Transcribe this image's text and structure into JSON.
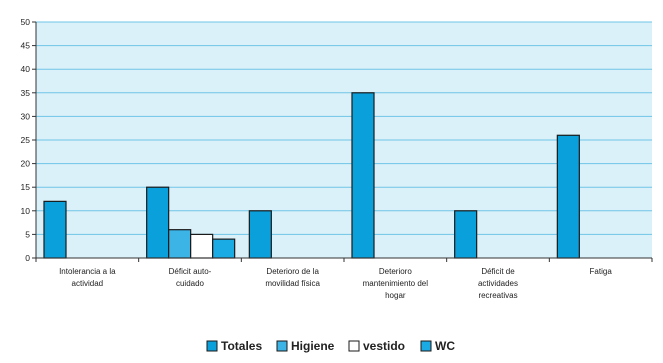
{
  "chart_data": {
    "type": "bar",
    "title": "",
    "xlabel": "",
    "ylabel": "",
    "ylim": [
      0,
      50
    ],
    "yticks": [
      0,
      5,
      10,
      15,
      20,
      25,
      30,
      35,
      40,
      45,
      50
    ],
    "grid": true,
    "legend_position": "bottom",
    "categories": [
      [
        "Intolerancia a la",
        "actividad"
      ],
      [
        "Déficit auto-",
        "cuidado"
      ],
      [
        "Deterioro de la",
        "movilidad física"
      ],
      [
        "Deterioro",
        "mantenimiento del",
        "hogar"
      ],
      [
        "Déficit de",
        "actividades",
        "recreativas"
      ],
      [
        "Fatiga"
      ]
    ],
    "series": [
      {
        "name": "Totales",
        "color": "#0aa0dc",
        "values": [
          12,
          15,
          10,
          35,
          10,
          26
        ]
      },
      {
        "name": "Higiene",
        "color": "#3cb4e6",
        "values": [
          null,
          6,
          null,
          null,
          null,
          null
        ]
      },
      {
        "name": "vestido",
        "color": "#ffffff",
        "values": [
          null,
          5,
          null,
          null,
          null,
          null
        ]
      },
      {
        "name": "WC",
        "color": "#1aaae4",
        "values": [
          null,
          4,
          null,
          null,
          null,
          null
        ]
      }
    ],
    "colors": {
      "plot_background": "#dbf1f9",
      "gridline": "#6fc5e8",
      "bar_outline": "#1a1a1a"
    }
  }
}
